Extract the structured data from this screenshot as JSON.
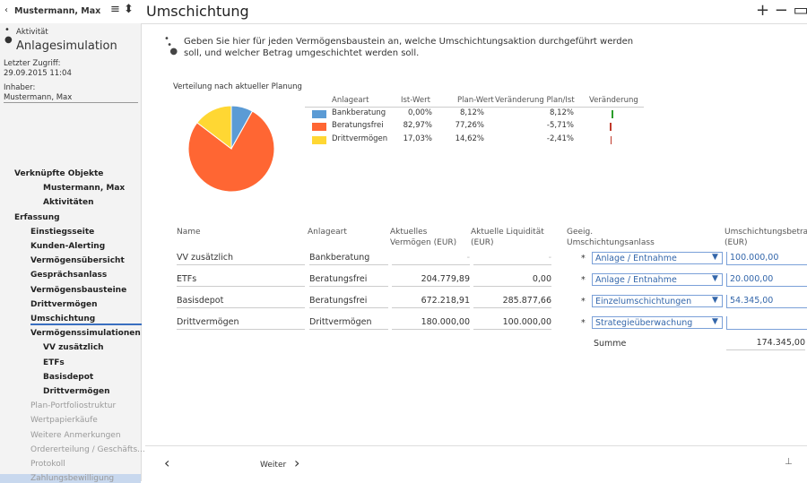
{
  "header": {
    "user": "Mustermann, Max",
    "title": "Umschichtung"
  },
  "sidebar": {
    "type_label": "Aktivität",
    "activity": "Anlagesimulation",
    "access_label": "Letzter Zugriff:",
    "access": "29.09.2015 11:04",
    "owner_label": "Inhaber:",
    "owner": "Mustermann, Max"
  },
  "nav": {
    "linked": {
      "title": "Verknüpfte Objekte",
      "items": [
        "Mustermann, Max",
        "Aktivitäten"
      ]
    },
    "capture": {
      "title": "Erfassung",
      "items": [
        "Einstiegsseite",
        "Kunden-Alerting",
        "Vermögensübersicht",
        "Gesprächsanlass",
        "Vermögensbausteine",
        "Drittvermögen",
        "Umschichtung"
      ],
      "simulations": {
        "title": "Vermögenssimulationen",
        "items": [
          "VV zusätzlich",
          "ETFs",
          "Basisdepot",
          "Drittvermögen"
        ]
      },
      "pending": [
        "Plan-Portfoliostruktur",
        "Wertpapierkäufe",
        "Weitere Anmerkungen",
        "Ordererteilung / Geschäfts...",
        "Protokoll",
        "Zahlungsbewilligung"
      ]
    }
  },
  "intro": [
    "Geben Sie hier für jeden Vermögensbaustein an, welche Umschichtungsaktion durchgeführt werden",
    "soll, und welcher Betrag umgeschichtet werden soll."
  ],
  "allocation": {
    "title": "Verteilung nach aktueller Planung",
    "columns": [
      "Anlageart",
      "Ist-Wert",
      "Plan-Wert",
      "Veränderung Plan/Ist",
      "Veränderung"
    ],
    "rows": [
      {
        "name": "Bankberatung",
        "color": "#5b9bd5",
        "ist": "0,00%",
        "plan": {
          "value": 8.12,
          "label": "8,12%"
        },
        "change": {
          "value": 8.12,
          "label": "8,12%"
        }
      },
      {
        "name": "Beratungsfrei",
        "color": "#ff6633",
        "ist": "82,97%",
        "plan": {
          "value": 77.26,
          "label": "77,26%"
        },
        "change": {
          "value": -5.71,
          "label": "-5,71%"
        }
      },
      {
        "name": "Drittvermögen",
        "color": "#ffd733",
        "ist": "17,03%",
        "plan": {
          "value": 14.62,
          "label": "14,62%"
        },
        "change": {
          "value": -2.41,
          "label": "-2,41%"
        }
      }
    ]
  },
  "table": {
    "columns": [
      "Name",
      "Anlageart",
      "Aktuelles Vermögen (EUR)",
      "Aktuelle Liquidität (EUR)",
      "Geeig. Umschichtungsanlass",
      "Umschichtungsbetrag (EUR)"
    ],
    "rows": [
      {
        "name": "VV zusätzlich",
        "type": "Bankberatung",
        "assets": "-",
        "liquidity": "-",
        "reason": "Anlage / Entnahme",
        "amount": "100.000,00"
      },
      {
        "name": "ETFs",
        "type": "Beratungsfrei",
        "assets": "204.779,89",
        "liquidity": "0,00",
        "reason": "Anlage / Entnahme",
        "amount": "20.000,00"
      },
      {
        "name": "Basisdepot",
        "type": "Beratungsfrei",
        "assets": "672.218,91",
        "liquidity": "285.877,66",
        "reason": "Einzelumschichtungen",
        "amount": "54.345,00"
      },
      {
        "name": "Drittvermögen",
        "type": "Drittvermögen",
        "assets": "180.000,00",
        "liquidity": "100.000,00",
        "reason": "Strategieüberwachung"
      }
    ],
    "sum_label": "Summe",
    "sum": "174.345,00"
  },
  "footer": {
    "next": "Weiter"
  }
}
